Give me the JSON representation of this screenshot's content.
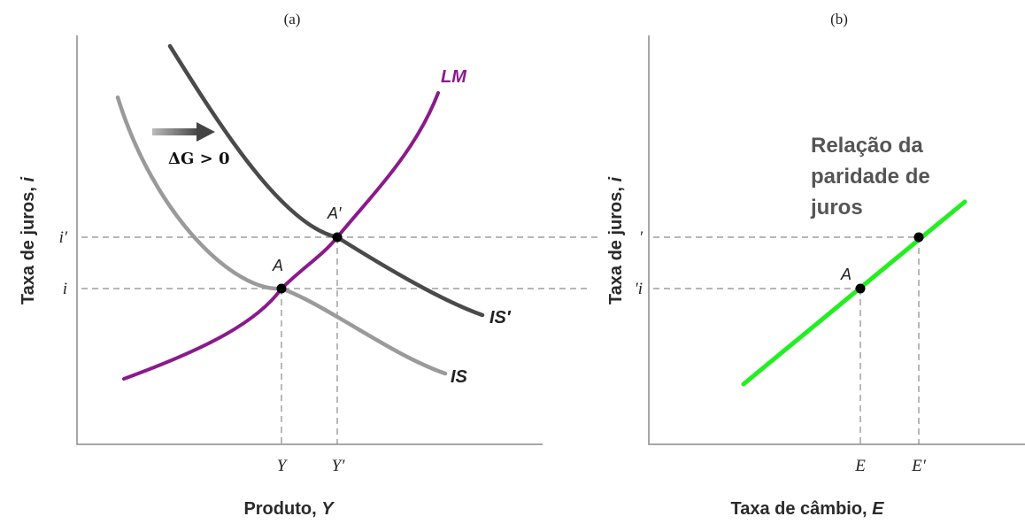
{
  "panel_a": {
    "label": "(a)",
    "y_axis_title": "Taxa de juros, ",
    "y_axis_var": "i",
    "x_axis_title": "Produto, ",
    "x_axis_var": "Y",
    "y_ticks": [
      "i′",
      "i"
    ],
    "x_ticks": [
      "Y",
      "Y′"
    ],
    "curves": {
      "lm": "LM",
      "is": "IS",
      "is_shifted": "IS′"
    },
    "shift_label": "ΔG > 0",
    "points": [
      "A",
      "A′"
    ],
    "colors": {
      "lm": "#8b1a8b",
      "is": "#9a9a9a",
      "is_shifted": "#4a4a4a",
      "arrow": "#555555"
    }
  },
  "panel_b": {
    "label": "(b)",
    "y_axis_title": "Taxa de juros, ",
    "y_axis_var": "i",
    "x_axis_title": "Taxa de câmbio, ",
    "x_axis_var": "E",
    "y_ticks": [
      "′",
      "′i"
    ],
    "x_ticks": [
      "E",
      "E′"
    ],
    "points": [
      "A"
    ],
    "note_lines": [
      "Relação da",
      "paridade de",
      "juros"
    ],
    "colors": {
      "parity_line": "#22ee22"
    }
  }
}
